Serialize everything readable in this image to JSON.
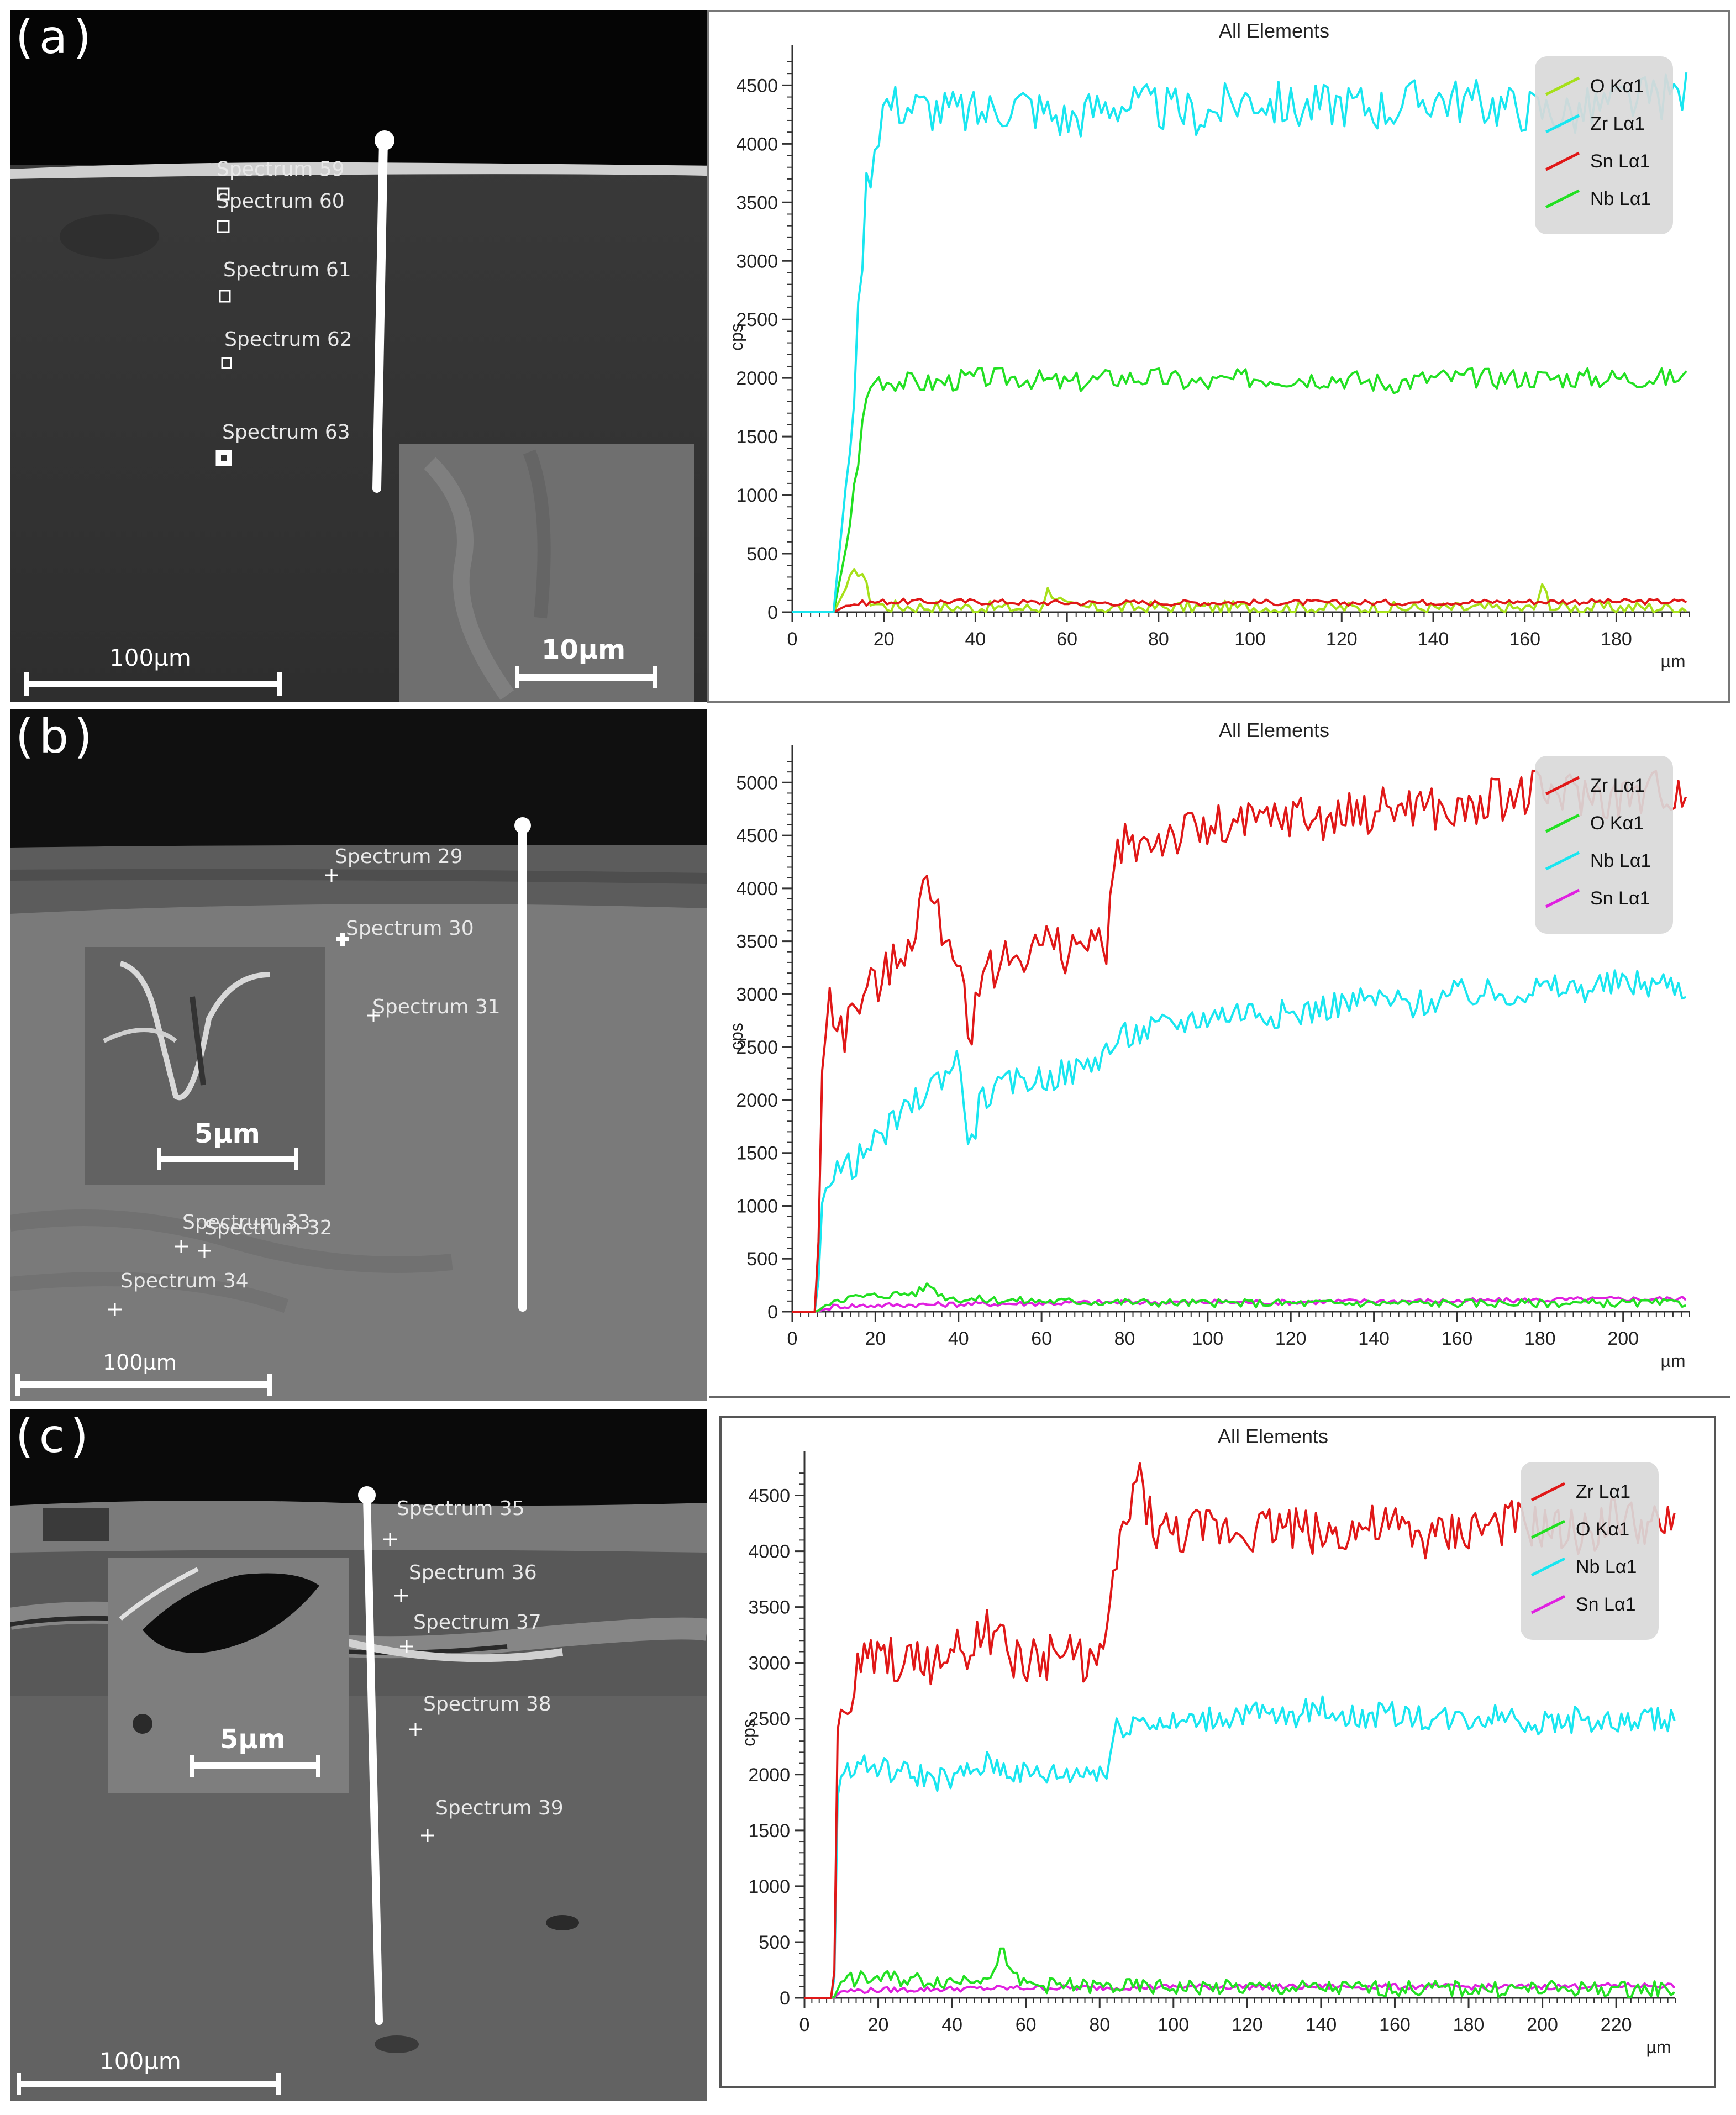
{
  "panels": [
    {
      "label": "(a)",
      "spectra": [
        "Spectrum 59",
        "Spectrum 60",
        "Spectrum 61",
        "Spectrum 62",
        "Spectrum 63"
      ],
      "scale_main": "100µm",
      "scale_inset": "10µm"
    },
    {
      "label": "(b)",
      "spectra": [
        "Spectrum 29",
        "Spectrum 30",
        "Spectrum 31",
        "Spectrum 33",
        "Spectrum 32",
        "Spectrum 34"
      ],
      "scale_main": "100µm",
      "scale_inset": "5µm"
    },
    {
      "label": "(c)",
      "spectra": [
        "Spectrum 35",
        "Spectrum 36",
        "Spectrum 37",
        "Spectrum 38",
        "Spectrum 39"
      ],
      "scale_main": "100µm",
      "scale_inset": "5µm"
    }
  ],
  "colors": {
    "cyan": "#19e6f0",
    "green": "#22e022",
    "red": "#e01818",
    "magenta": "#e020e0",
    "lime": "#a6e01a"
  },
  "chart_data": [
    {
      "type": "line",
      "title": "All Elements",
      "xlabel": "µm",
      "ylabel": "cps",
      "xlim": [
        0,
        196
      ],
      "ylim": [
        0,
        4700
      ],
      "xticks": [
        0,
        20,
        40,
        60,
        80,
        100,
        120,
        140,
        160,
        180
      ],
      "yticks": [
        0,
        500,
        1000,
        1500,
        2000,
        2500,
        3000,
        3500,
        4000,
        4500
      ],
      "legend_position": "top-right",
      "legend": [
        {
          "name": "O Kα1",
          "color": "#a6e01a"
        },
        {
          "name": "Zr Lα1",
          "color": "#19e6f0"
        },
        {
          "name": "Sn Lα1",
          "color": "#e01818"
        },
        {
          "name": "Nb Lα1",
          "color": "#22e022"
        }
      ],
      "series": [
        {
          "name": "Zr Lα1",
          "color": "#19e6f0",
          "x": [
            0,
            9,
            10,
            12,
            14,
            16,
            18,
            20,
            30,
            40,
            50,
            60,
            70,
            80,
            90,
            100,
            110,
            120,
            130,
            140,
            150,
            160,
            170,
            180,
            190,
            196
          ],
          "y": [
            0,
            0,
            400,
            1200,
            2200,
            3600,
            4000,
            4350,
            4300,
            4250,
            4350,
            4200,
            4350,
            4300,
            4250,
            4400,
            4300,
            4350,
            4300,
            4400,
            4350,
            4300,
            4250,
            4350,
            4400,
            4450
          ]
        },
        {
          "name": "Nb Lα1",
          "color": "#22e022",
          "x": [
            0,
            9,
            10,
            12,
            14,
            16,
            18,
            20,
            30,
            40,
            50,
            60,
            70,
            80,
            90,
            100,
            110,
            120,
            130,
            140,
            150,
            160,
            170,
            180,
            190,
            196
          ],
          "y": [
            0,
            0,
            200,
            600,
            1200,
            1800,
            2000,
            1980,
            1950,
            2000,
            2000,
            1950,
            2000,
            2000,
            1950,
            2000,
            2000,
            2000,
            1950,
            2000,
            2000,
            2000,
            2000,
            2000,
            2000,
            2000
          ]
        },
        {
          "name": "Sn Lα1",
          "color": "#e01818",
          "x": [
            0,
            9,
            12,
            16,
            20,
            40,
            60,
            80,
            100,
            120,
            140,
            160,
            180,
            196
          ],
          "y": [
            0,
            0,
            60,
            80,
            90,
            90,
            80,
            80,
            85,
            80,
            85,
            90,
            90,
            90
          ]
        },
        {
          "name": "O Kα1",
          "color": "#a6e01a",
          "x": [
            0,
            9,
            11,
            13,
            15,
            17,
            20,
            40,
            54,
            56,
            60,
            100,
            162,
            164,
            166,
            196
          ],
          "y": [
            0,
            0,
            150,
            300,
            380,
            100,
            50,
            40,
            30,
            200,
            40,
            40,
            30,
            220,
            40,
            40
          ]
        }
      ]
    },
    {
      "type": "line",
      "title": "All Elements",
      "xlabel": "µm",
      "ylabel": "cps",
      "xlim": [
        0,
        216
      ],
      "ylim": [
        0,
        5200
      ],
      "xticks": [
        0,
        20,
        40,
        60,
        80,
        100,
        120,
        140,
        160,
        180,
        200
      ],
      "yticks": [
        0,
        500,
        1000,
        1500,
        2000,
        2500,
        3000,
        3500,
        4000,
        4500,
        5000
      ],
      "legend_position": "top-right",
      "legend": [
        {
          "name": "Zr Lα1",
          "color": "#e01818"
        },
        {
          "name": "O Kα1",
          "color": "#22e022"
        },
        {
          "name": "Nb Lα1",
          "color": "#19e6f0"
        },
        {
          "name": "Sn Lα1",
          "color": "#e020e0"
        }
      ],
      "series": [
        {
          "name": "Zr Lα1",
          "color": "#e01818",
          "x": [
            0,
            6,
            7,
            9,
            12,
            15,
            20,
            25,
            30,
            32,
            35,
            40,
            43,
            45,
            50,
            55,
            60,
            65,
            70,
            74,
            75,
            78,
            80,
            90,
            100,
            110,
            120,
            130,
            140,
            150,
            160,
            170,
            180,
            190,
            200,
            210,
            216
          ],
          "y": [
            0,
            0,
            2200,
            3000,
            2600,
            2900,
            3100,
            3300,
            3700,
            4100,
            3700,
            3400,
            2300,
            3200,
            3300,
            3400,
            3500,
            3400,
            3500,
            3400,
            3300,
            4300,
            4400,
            4500,
            4550,
            4600,
            4700,
            4650,
            4750,
            4800,
            4700,
            4850,
            4900,
            4900,
            4850,
            4950,
            4900
          ]
        },
        {
          "name": "Nb Lα1",
          "color": "#19e6f0",
          "x": [
            0,
            6,
            7,
            9,
            15,
            20,
            25,
            30,
            35,
            40,
            43,
            45,
            50,
            55,
            60,
            70,
            80,
            90,
            100,
            110,
            120,
            130,
            140,
            150,
            160,
            170,
            180,
            190,
            200,
            210,
            216
          ],
          "y": [
            0,
            0,
            1000,
            1300,
            1400,
            1600,
            1800,
            2000,
            2200,
            2400,
            1500,
            2000,
            2100,
            2200,
            2200,
            2300,
            2600,
            2700,
            2800,
            2850,
            2800,
            2900,
            2950,
            2900,
            3000,
            3000,
            3050,
            3050,
            3100,
            3100,
            3050
          ]
        },
        {
          "name": "O Kα1",
          "color": "#22e022",
          "x": [
            0,
            6,
            10,
            20,
            30,
            33,
            36,
            40,
            60,
            100,
            150,
            200,
            216
          ],
          "y": [
            0,
            0,
            120,
            150,
            180,
            260,
            150,
            120,
            100,
            80,
            80,
            80,
            80
          ]
        },
        {
          "name": "Sn Lα1",
          "color": "#e020e0",
          "x": [
            0,
            6,
            10,
            20,
            40,
            60,
            80,
            100,
            120,
            140,
            160,
            180,
            200,
            216
          ],
          "y": [
            0,
            0,
            50,
            60,
            70,
            80,
            90,
            90,
            90,
            100,
            100,
            110,
            120,
            120
          ]
        }
      ]
    },
    {
      "type": "line",
      "title": "All Elements",
      "xlabel": "µm",
      "ylabel": "cps",
      "xlim": [
        0,
        236
      ],
      "ylim": [
        0,
        4750
      ],
      "xticks": [
        0,
        20,
        40,
        60,
        80,
        100,
        120,
        140,
        160,
        180,
        200,
        220
      ],
      "yticks": [
        0,
        500,
        1000,
        1500,
        2000,
        2500,
        3000,
        3500,
        4000,
        4500
      ],
      "legend_position": "top-right",
      "legend": [
        {
          "name": "Zr Lα1",
          "color": "#e01818"
        },
        {
          "name": "O Kα1",
          "color": "#22e022"
        },
        {
          "name": "Nb Lα1",
          "color": "#19e6f0"
        },
        {
          "name": "Sn Lα1",
          "color": "#e020e0"
        }
      ],
      "series": [
        {
          "name": "Zr Lα1",
          "color": "#e01818",
          "x": [
            0,
            8,
            9,
            10,
            12,
            15,
            20,
            30,
            40,
            50,
            55,
            60,
            70,
            80,
            82,
            84,
            88,
            90,
            95,
            100,
            110,
            120,
            130,
            140,
            150,
            160,
            170,
            180,
            190,
            200,
            210,
            220,
            230,
            236
          ],
          "y": [
            0,
            0,
            2400,
            2600,
            2500,
            3000,
            3050,
            3000,
            3050,
            3300,
            3100,
            3000,
            3100,
            3000,
            3100,
            3900,
            4300,
            4700,
            4200,
            4150,
            4200,
            4200,
            4250,
            4150,
            4200,
            4200,
            4100,
            4200,
            4250,
            4200,
            4150,
            4300,
            4200,
            4200
          ]
        },
        {
          "name": "Nb Lα1",
          "color": "#19e6f0",
          "x": [
            0,
            8,
            9,
            10,
            15,
            20,
            30,
            40,
            50,
            55,
            60,
            70,
            80,
            82,
            84,
            90,
            100,
            110,
            120,
            130,
            140,
            150,
            160,
            170,
            180,
            190,
            200,
            210,
            220,
            230,
            236
          ],
          "y": [
            0,
            0,
            1800,
            2000,
            2100,
            2050,
            2000,
            1950,
            2100,
            2050,
            2000,
            2000,
            2050,
            2000,
            2400,
            2500,
            2450,
            2500,
            2550,
            2500,
            2600,
            2500,
            2550,
            2500,
            2500,
            2550,
            2450,
            2500,
            2450,
            2500,
            2500
          ]
        },
        {
          "name": "O Kα1",
          "color": "#22e022",
          "x": [
            0,
            8,
            10,
            20,
            40,
            48,
            52,
            54,
            56,
            60,
            80,
            120,
            180,
            236
          ],
          "y": [
            0,
            0,
            150,
            180,
            150,
            200,
            250,
            480,
            180,
            120,
            100,
            90,
            80,
            80
          ]
        },
        {
          "name": "Sn Lα1",
          "color": "#e020e0",
          "x": [
            0,
            8,
            10,
            20,
            40,
            60,
            80,
            100,
            120,
            140,
            160,
            180,
            200,
            220,
            236
          ],
          "y": [
            0,
            0,
            60,
            70,
            80,
            90,
            90,
            100,
            100,
            100,
            100,
            100,
            100,
            110,
            110
          ]
        }
      ]
    }
  ]
}
